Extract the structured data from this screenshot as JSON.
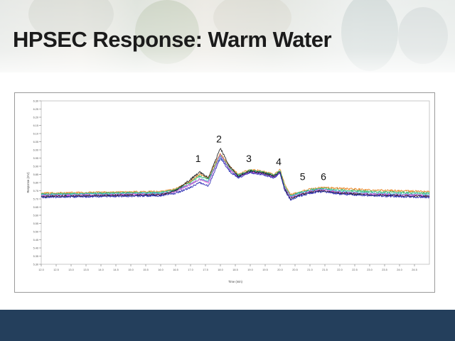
{
  "slide": {
    "title": "HPSEC Response: Warm Water"
  },
  "colors": {
    "footer": "#243f5c",
    "title_text": "#1b1b1b"
  },
  "chart_data": {
    "type": "line",
    "xlabel": "Time (min)",
    "ylabel": "Response (mV)",
    "xlim": [
      12.0,
      25.0
    ],
    "ylim": [
      5.3,
      6.3
    ],
    "x_ticks": [
      "12.0",
      "12.5",
      "13.0",
      "13.5",
      "14.0",
      "14.5",
      "15.0",
      "15.5",
      "16.0",
      "16.5",
      "17.0",
      "17.5",
      "18.0",
      "18.5",
      "19.0",
      "19.5",
      "20.0",
      "20.5",
      "21.0",
      "21.5",
      "22.0",
      "22.5",
      "23.0",
      "23.5",
      "24.0",
      "24.5"
    ],
    "y_ticks": [
      "5.30",
      "5.35",
      "5.40",
      "5.45",
      "5.50",
      "5.55",
      "5.60",
      "5.65",
      "5.70",
      "5.75",
      "5.80",
      "5.85",
      "5.90",
      "5.95",
      "6.00",
      "6.05",
      "6.10",
      "6.15",
      "6.20",
      "6.25",
      "6.30"
    ],
    "peak_labels": [
      {
        "label": "1",
        "x": 17.3,
        "y": 5.9
      },
      {
        "label": "2",
        "x": 18.0,
        "y": 6.02
      },
      {
        "label": "3",
        "x": 19.0,
        "y": 5.9
      },
      {
        "label": "4",
        "x": 20.0,
        "y": 5.88
      },
      {
        "label": "5",
        "x": 20.8,
        "y": 5.79
      },
      {
        "label": "6",
        "x": 21.5,
        "y": 5.79
      }
    ],
    "series": [
      {
        "color": "#e8821c",
        "values": [
          [
            12.0,
            5.735
          ],
          [
            16.0,
            5.745
          ],
          [
            16.5,
            5.76
          ],
          [
            17.0,
            5.81
          ],
          [
            17.3,
            5.85
          ],
          [
            17.6,
            5.83
          ],
          [
            18.0,
            5.98
          ],
          [
            18.3,
            5.9
          ],
          [
            18.6,
            5.85
          ],
          [
            19.0,
            5.88
          ],
          [
            19.4,
            5.87
          ],
          [
            19.8,
            5.85
          ],
          [
            20.0,
            5.88
          ],
          [
            20.15,
            5.79
          ],
          [
            20.35,
            5.725
          ],
          [
            20.6,
            5.74
          ],
          [
            21.0,
            5.76
          ],
          [
            21.4,
            5.77
          ],
          [
            22.0,
            5.765
          ],
          [
            23.0,
            5.755
          ],
          [
            25.0,
            5.745
          ]
        ]
      },
      {
        "color": "#2db56b",
        "values": [
          [
            12.0,
            5.73
          ],
          [
            16.0,
            5.74
          ],
          [
            16.5,
            5.755
          ],
          [
            17.0,
            5.8
          ],
          [
            17.3,
            5.84
          ],
          [
            17.6,
            5.82
          ],
          [
            18.0,
            5.97
          ],
          [
            18.3,
            5.89
          ],
          [
            18.6,
            5.845
          ],
          [
            19.0,
            5.875
          ],
          [
            19.4,
            5.865
          ],
          [
            19.8,
            5.845
          ],
          [
            20.0,
            5.87
          ],
          [
            20.15,
            5.78
          ],
          [
            20.35,
            5.72
          ],
          [
            20.6,
            5.735
          ],
          [
            21.0,
            5.755
          ],
          [
            21.4,
            5.765
          ],
          [
            22.0,
            5.755
          ],
          [
            23.0,
            5.745
          ],
          [
            25.0,
            5.735
          ]
        ]
      },
      {
        "color": "#27b3c8",
        "values": [
          [
            12.0,
            5.725
          ],
          [
            16.0,
            5.735
          ],
          [
            16.5,
            5.75
          ],
          [
            17.0,
            5.79
          ],
          [
            17.3,
            5.82
          ],
          [
            17.6,
            5.81
          ],
          [
            18.0,
            5.96
          ],
          [
            18.3,
            5.88
          ],
          [
            18.6,
            5.84
          ],
          [
            19.0,
            5.87
          ],
          [
            19.4,
            5.86
          ],
          [
            19.8,
            5.84
          ],
          [
            20.0,
            5.865
          ],
          [
            20.15,
            5.77
          ],
          [
            20.35,
            5.715
          ],
          [
            20.6,
            5.73
          ],
          [
            21.0,
            5.75
          ],
          [
            21.4,
            5.76
          ],
          [
            22.0,
            5.745
          ],
          [
            23.0,
            5.735
          ],
          [
            25.0,
            5.725
          ]
        ]
      },
      {
        "color": "#d64bd6",
        "values": [
          [
            12.0,
            5.72
          ],
          [
            16.0,
            5.73
          ],
          [
            16.5,
            5.745
          ],
          [
            17.0,
            5.79
          ],
          [
            17.3,
            5.82
          ],
          [
            17.6,
            5.8
          ],
          [
            18.0,
            5.97
          ],
          [
            18.3,
            5.88
          ],
          [
            18.6,
            5.835
          ],
          [
            19.0,
            5.865
          ],
          [
            19.4,
            5.855
          ],
          [
            19.8,
            5.835
          ],
          [
            20.0,
            5.86
          ],
          [
            20.15,
            5.765
          ],
          [
            20.35,
            5.71
          ],
          [
            20.6,
            5.725
          ],
          [
            21.0,
            5.745
          ],
          [
            21.4,
            5.755
          ],
          [
            22.0,
            5.74
          ],
          [
            23.0,
            5.73
          ],
          [
            25.0,
            5.72
          ]
        ]
      },
      {
        "color": "#1a1a1a",
        "values": [
          [
            12.0,
            5.715
          ],
          [
            16.0,
            5.725
          ],
          [
            16.5,
            5.75
          ],
          [
            17.0,
            5.82
          ],
          [
            17.3,
            5.865
          ],
          [
            17.6,
            5.83
          ],
          [
            18.0,
            6.01
          ],
          [
            18.3,
            5.9
          ],
          [
            18.6,
            5.84
          ],
          [
            19.0,
            5.87
          ],
          [
            19.4,
            5.86
          ],
          [
            19.8,
            5.84
          ],
          [
            20.0,
            5.865
          ],
          [
            20.15,
            5.76
          ],
          [
            20.35,
            5.7
          ],
          [
            20.6,
            5.72
          ],
          [
            21.0,
            5.74
          ],
          [
            21.4,
            5.75
          ],
          [
            22.0,
            5.735
          ],
          [
            23.0,
            5.725
          ],
          [
            25.0,
            5.715
          ]
        ]
      },
      {
        "color": "#2222b0",
        "values": [
          [
            12.0,
            5.71
          ],
          [
            16.0,
            5.72
          ],
          [
            16.5,
            5.735
          ],
          [
            17.0,
            5.77
          ],
          [
            17.3,
            5.8
          ],
          [
            17.6,
            5.78
          ],
          [
            18.0,
            5.95
          ],
          [
            18.3,
            5.87
          ],
          [
            18.6,
            5.83
          ],
          [
            19.0,
            5.86
          ],
          [
            19.4,
            5.85
          ],
          [
            19.8,
            5.83
          ],
          [
            20.0,
            5.855
          ],
          [
            20.15,
            5.755
          ],
          [
            20.35,
            5.695
          ],
          [
            20.6,
            5.715
          ],
          [
            21.0,
            5.735
          ],
          [
            21.4,
            5.745
          ],
          [
            22.0,
            5.73
          ],
          [
            23.0,
            5.72
          ],
          [
            25.0,
            5.71
          ]
        ]
      }
    ]
  }
}
